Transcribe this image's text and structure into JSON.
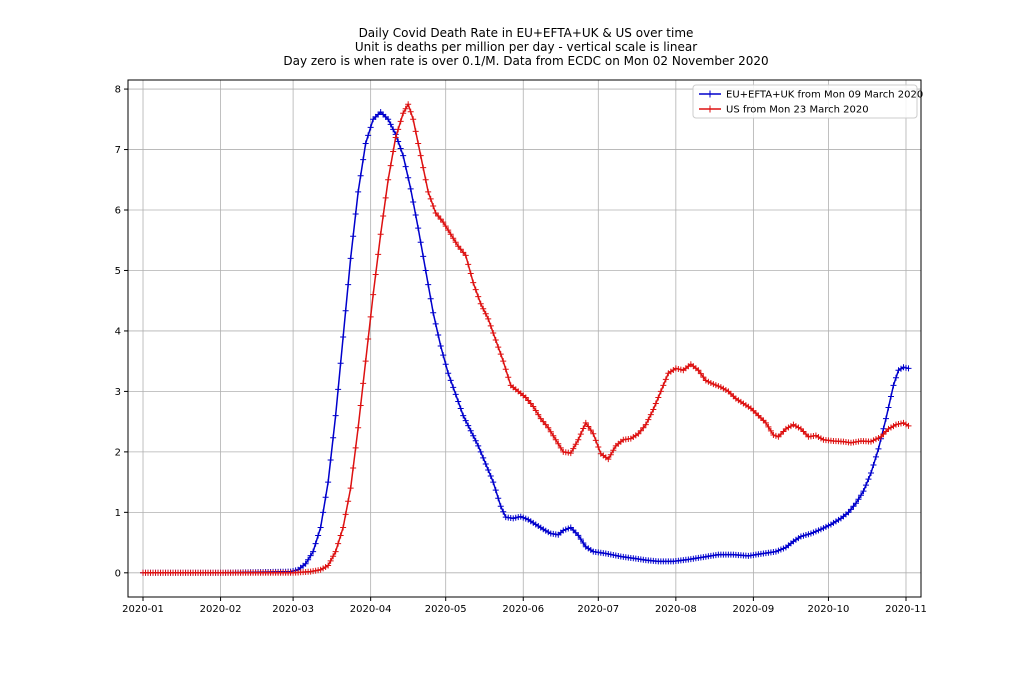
{
  "chart_data": {
    "type": "line",
    "title": [
      "Daily Covid Death Rate in EU+EFTA+UK & US over time",
      "Unit is deaths per million per day - vertical scale is linear",
      "Day zero is when rate is over  0.1/M. Data from ECDC on Mon 02 November 2020"
    ],
    "xlabel": "",
    "ylabel": "",
    "x_range": [
      "2019-12-26",
      "2020-11-07"
    ],
    "ylim": [
      -0.4,
      8.15
    ],
    "x_ticks": [
      "2020-01",
      "2020-02",
      "2020-03",
      "2020-04",
      "2020-05",
      "2020-06",
      "2020-07",
      "2020-08",
      "2020-09",
      "2020-10",
      "2020-11"
    ],
    "y_ticks": [
      "0",
      "1",
      "2",
      "3",
      "4",
      "5",
      "6",
      "7",
      "8"
    ],
    "grid": true,
    "legend_position": "top-right",
    "marker": "+",
    "series": [
      {
        "name": "EU+EFTA+UK from Mon 09 March 2020",
        "color": "#0000cc",
        "points": [
          [
            "2020-01-01",
            0
          ],
          [
            "2020-02-01",
            0
          ],
          [
            "2020-02-29",
            0.02
          ],
          [
            "2020-03-03",
            0.05
          ],
          [
            "2020-03-06",
            0.15
          ],
          [
            "2020-03-09",
            0.35
          ],
          [
            "2020-03-12",
            0.75
          ],
          [
            "2020-03-15",
            1.5
          ],
          [
            "2020-03-18",
            2.6
          ],
          [
            "2020-03-21",
            3.9
          ],
          [
            "2020-03-24",
            5.2
          ],
          [
            "2020-03-27",
            6.3
          ],
          [
            "2020-03-30",
            7.1
          ],
          [
            "2020-04-02",
            7.5
          ],
          [
            "2020-04-05",
            7.62
          ],
          [
            "2020-04-08",
            7.5
          ],
          [
            "2020-04-11",
            7.25
          ],
          [
            "2020-04-14",
            6.9
          ],
          [
            "2020-04-17",
            6.35
          ],
          [
            "2020-04-20",
            5.7
          ],
          [
            "2020-04-23",
            5.0
          ],
          [
            "2020-04-26",
            4.3
          ],
          [
            "2020-04-29",
            3.75
          ],
          [
            "2020-05-02",
            3.3
          ],
          [
            "2020-05-05",
            2.95
          ],
          [
            "2020-05-08",
            2.6
          ],
          [
            "2020-05-11",
            2.35
          ],
          [
            "2020-05-14",
            2.1
          ],
          [
            "2020-05-17",
            1.8
          ],
          [
            "2020-05-20",
            1.5
          ],
          [
            "2020-05-23",
            1.1
          ],
          [
            "2020-05-25",
            0.92
          ],
          [
            "2020-05-28",
            0.9
          ],
          [
            "2020-05-31",
            0.93
          ],
          [
            "2020-06-03",
            0.88
          ],
          [
            "2020-06-06",
            0.8
          ],
          [
            "2020-06-09",
            0.72
          ],
          [
            "2020-06-12",
            0.65
          ],
          [
            "2020-06-15",
            0.63
          ],
          [
            "2020-06-17",
            0.7
          ],
          [
            "2020-06-20",
            0.75
          ],
          [
            "2020-06-23",
            0.62
          ],
          [
            "2020-06-26",
            0.43
          ],
          [
            "2020-06-29",
            0.35
          ],
          [
            "2020-07-04",
            0.32
          ],
          [
            "2020-07-10",
            0.27
          ],
          [
            "2020-07-15",
            0.24
          ],
          [
            "2020-07-20",
            0.21
          ],
          [
            "2020-07-25",
            0.19
          ],
          [
            "2020-07-31",
            0.19
          ],
          [
            "2020-08-06",
            0.22
          ],
          [
            "2020-08-12",
            0.26
          ],
          [
            "2020-08-18",
            0.3
          ],
          [
            "2020-08-24",
            0.3
          ],
          [
            "2020-08-30",
            0.28
          ],
          [
            "2020-09-05",
            0.32
          ],
          [
            "2020-09-10",
            0.35
          ],
          [
            "2020-09-14",
            0.42
          ],
          [
            "2020-09-17",
            0.52
          ],
          [
            "2020-09-20",
            0.6
          ],
          [
            "2020-09-24",
            0.65
          ],
          [
            "2020-09-28",
            0.72
          ],
          [
            "2020-10-02",
            0.8
          ],
          [
            "2020-10-06",
            0.9
          ],
          [
            "2020-10-09",
            1.0
          ],
          [
            "2020-10-12",
            1.15
          ],
          [
            "2020-10-15",
            1.35
          ],
          [
            "2020-10-18",
            1.65
          ],
          [
            "2020-10-21",
            2.05
          ],
          [
            "2020-10-24",
            2.55
          ],
          [
            "2020-10-27",
            3.1
          ],
          [
            "2020-10-29",
            3.35
          ],
          [
            "2020-10-31",
            3.4
          ],
          [
            "2020-11-02",
            3.38
          ]
        ]
      },
      {
        "name": "US from Mon 23 March 2020",
        "color": "#dd1111",
        "points": [
          [
            "2020-01-01",
            0
          ],
          [
            "2020-02-01",
            0
          ],
          [
            "2020-03-01",
            0
          ],
          [
            "2020-03-08",
            0.02
          ],
          [
            "2020-03-12",
            0.05
          ],
          [
            "2020-03-15",
            0.12
          ],
          [
            "2020-03-18",
            0.35
          ],
          [
            "2020-03-21",
            0.75
          ],
          [
            "2020-03-24",
            1.4
          ],
          [
            "2020-03-27",
            2.4
          ],
          [
            "2020-03-30",
            3.5
          ],
          [
            "2020-04-02",
            4.6
          ],
          [
            "2020-04-05",
            5.6
          ],
          [
            "2020-04-08",
            6.5
          ],
          [
            "2020-04-11",
            7.2
          ],
          [
            "2020-04-14",
            7.6
          ],
          [
            "2020-04-16",
            7.75
          ],
          [
            "2020-04-18",
            7.5
          ],
          [
            "2020-04-21",
            6.9
          ],
          [
            "2020-04-24",
            6.3
          ],
          [
            "2020-04-27",
            5.95
          ],
          [
            "2020-04-30",
            5.8
          ],
          [
            "2020-05-03",
            5.6
          ],
          [
            "2020-05-06",
            5.4
          ],
          [
            "2020-05-09",
            5.25
          ],
          [
            "2020-05-12",
            4.8
          ],
          [
            "2020-05-15",
            4.45
          ],
          [
            "2020-05-18",
            4.2
          ],
          [
            "2020-05-21",
            3.85
          ],
          [
            "2020-05-24",
            3.5
          ],
          [
            "2020-05-27",
            3.1
          ],
          [
            "2020-05-30",
            3.0
          ],
          [
            "2020-06-02",
            2.9
          ],
          [
            "2020-06-05",
            2.75
          ],
          [
            "2020-06-08",
            2.55
          ],
          [
            "2020-06-11",
            2.4
          ],
          [
            "2020-06-14",
            2.2
          ],
          [
            "2020-06-17",
            2.0
          ],
          [
            "2020-06-20",
            1.98
          ],
          [
            "2020-06-23",
            2.2
          ],
          [
            "2020-06-26",
            2.48
          ],
          [
            "2020-06-29",
            2.3
          ],
          [
            "2020-07-02",
            1.97
          ],
          [
            "2020-07-05",
            1.88
          ],
          [
            "2020-07-08",
            2.1
          ],
          [
            "2020-07-11",
            2.2
          ],
          [
            "2020-07-14",
            2.22
          ],
          [
            "2020-07-17",
            2.3
          ],
          [
            "2020-07-20",
            2.45
          ],
          [
            "2020-07-23",
            2.7
          ],
          [
            "2020-07-26",
            3.0
          ],
          [
            "2020-07-29",
            3.3
          ],
          [
            "2020-08-01",
            3.38
          ],
          [
            "2020-08-04",
            3.35
          ],
          [
            "2020-08-07",
            3.45
          ],
          [
            "2020-08-10",
            3.35
          ],
          [
            "2020-08-13",
            3.18
          ],
          [
            "2020-08-16",
            3.12
          ],
          [
            "2020-08-19",
            3.07
          ],
          [
            "2020-08-22",
            3.0
          ],
          [
            "2020-08-25",
            2.88
          ],
          [
            "2020-08-28",
            2.8
          ],
          [
            "2020-08-31",
            2.72
          ],
          [
            "2020-09-03",
            2.6
          ],
          [
            "2020-09-06",
            2.48
          ],
          [
            "2020-09-09",
            2.28
          ],
          [
            "2020-09-11",
            2.25
          ],
          [
            "2020-09-14",
            2.38
          ],
          [
            "2020-09-17",
            2.45
          ],
          [
            "2020-09-20",
            2.38
          ],
          [
            "2020-09-23",
            2.25
          ],
          [
            "2020-09-26",
            2.27
          ],
          [
            "2020-09-29",
            2.2
          ],
          [
            "2020-10-03",
            2.18
          ],
          [
            "2020-10-07",
            2.17
          ],
          [
            "2020-10-10",
            2.15
          ],
          [
            "2020-10-14",
            2.18
          ],
          [
            "2020-10-18",
            2.17
          ],
          [
            "2020-10-22",
            2.25
          ],
          [
            "2020-10-25",
            2.38
          ],
          [
            "2020-10-28",
            2.45
          ],
          [
            "2020-10-31",
            2.48
          ],
          [
            "2020-11-02",
            2.43
          ]
        ]
      }
    ]
  }
}
